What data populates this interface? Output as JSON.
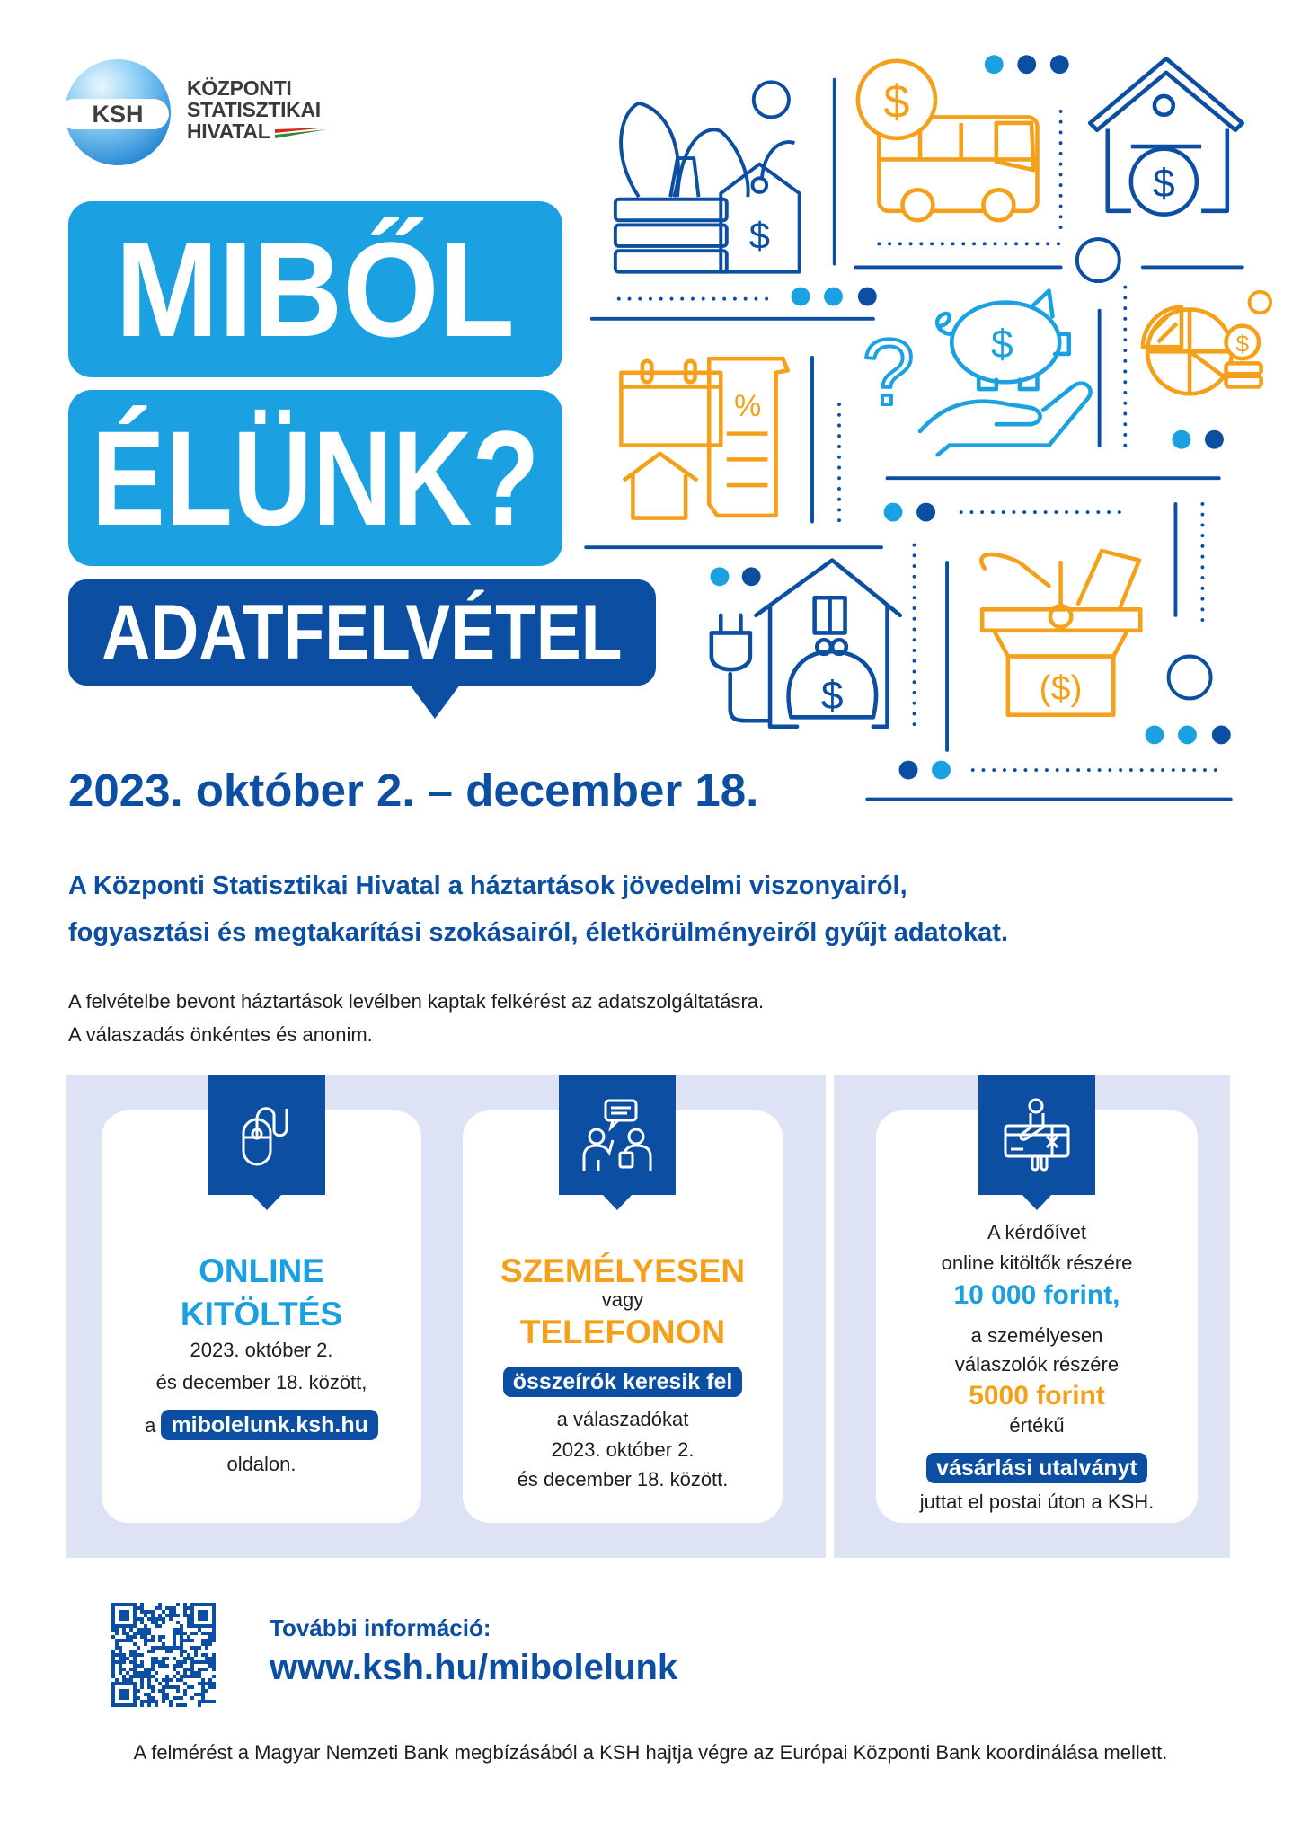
{
  "logo": {
    "abbr": "KSH",
    "lines": [
      "KÖZPONTI",
      "STATISZTIKAI",
      "HIVATAL"
    ]
  },
  "hero": {
    "line1": "MIBŐL",
    "line2": "ÉLÜNK?",
    "subtitle": "ADATFELVÉTEL"
  },
  "date_range": "2023. október 2. – december 18.",
  "intro": {
    "lead": [
      "A Központi Statisztikai Hivatal a háztartások jövedelmi viszonyairól,",
      "fogyasztási és megtakarítási szokásairól, életkörülményeiről gyűjt adatokat."
    ],
    "body": [
      "A felvételbe bevont háztartások levélben kaptak felkérést az adatszolgáltatásra.",
      "A válaszadás önkéntes és anonim."
    ]
  },
  "cards": [
    {
      "icon": "computer-mouse-icon",
      "title": [
        "ONLINE",
        "KITÖLTÉS"
      ],
      "lines": [
        "2023. október 2.",
        "és december 18. között,"
      ],
      "prefix": "a",
      "badge": "mibolelunk.ksh.hu",
      "suffix": "oldalon."
    },
    {
      "icon": "interview-people-icon",
      "title1": "SZEMÉLYESEN",
      "connector": "vagy",
      "title2": "TELEFONON",
      "badge": "összeírók keresik fel",
      "lines": [
        "a válaszadókat",
        "2023. október 2.",
        "és december 18. között."
      ]
    },
    {
      "icon": "gift-card-icon",
      "lines1": [
        "A kérdőívet",
        "online kitöltők részére"
      ],
      "amount1": "10 000 forint,",
      "lines2": [
        "a személyesen",
        "válaszolók részére"
      ],
      "amount2": "5000 forint",
      "word": "értékű",
      "badge": "vásárlási utalványt",
      "last": "juttat el postai úton a KSH."
    }
  ],
  "more_info": {
    "label": "További információ:",
    "url": "www.ksh.hu/mibolelunk"
  },
  "footer": "A felmérést a Magyar Nemzeti Bank megbízásából a KSH hajtja végre az Európai Központi Bank koordinálása mellett.",
  "colors": {
    "dark_blue": "#0b4ea2",
    "light_blue": "#1ba1e2",
    "orange": "#f5a01a",
    "panel": "#dde3f4"
  }
}
